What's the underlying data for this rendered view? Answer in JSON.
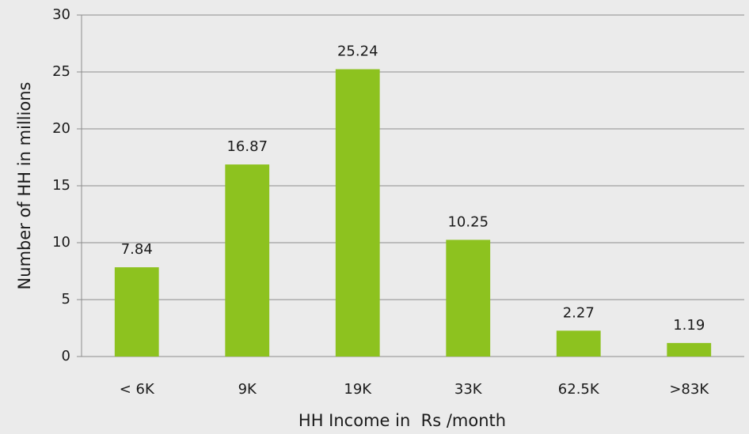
{
  "chart_data": {
    "type": "bar",
    "categories": [
      "< 6K",
      "9K",
      "19K",
      "33K",
      "62.5K",
      ">83K"
    ],
    "values": [
      7.84,
      16.87,
      25.24,
      10.25,
      2.27,
      1.19
    ],
    "color": "#8dc21f",
    "xlabel": "HH Income in  Rs /month",
    "ylabel": "Number of HH in millions",
    "ylim": [
      0,
      30
    ],
    "yticks": [
      0,
      5,
      10,
      15,
      20,
      25,
      30
    ],
    "grid": true
  }
}
